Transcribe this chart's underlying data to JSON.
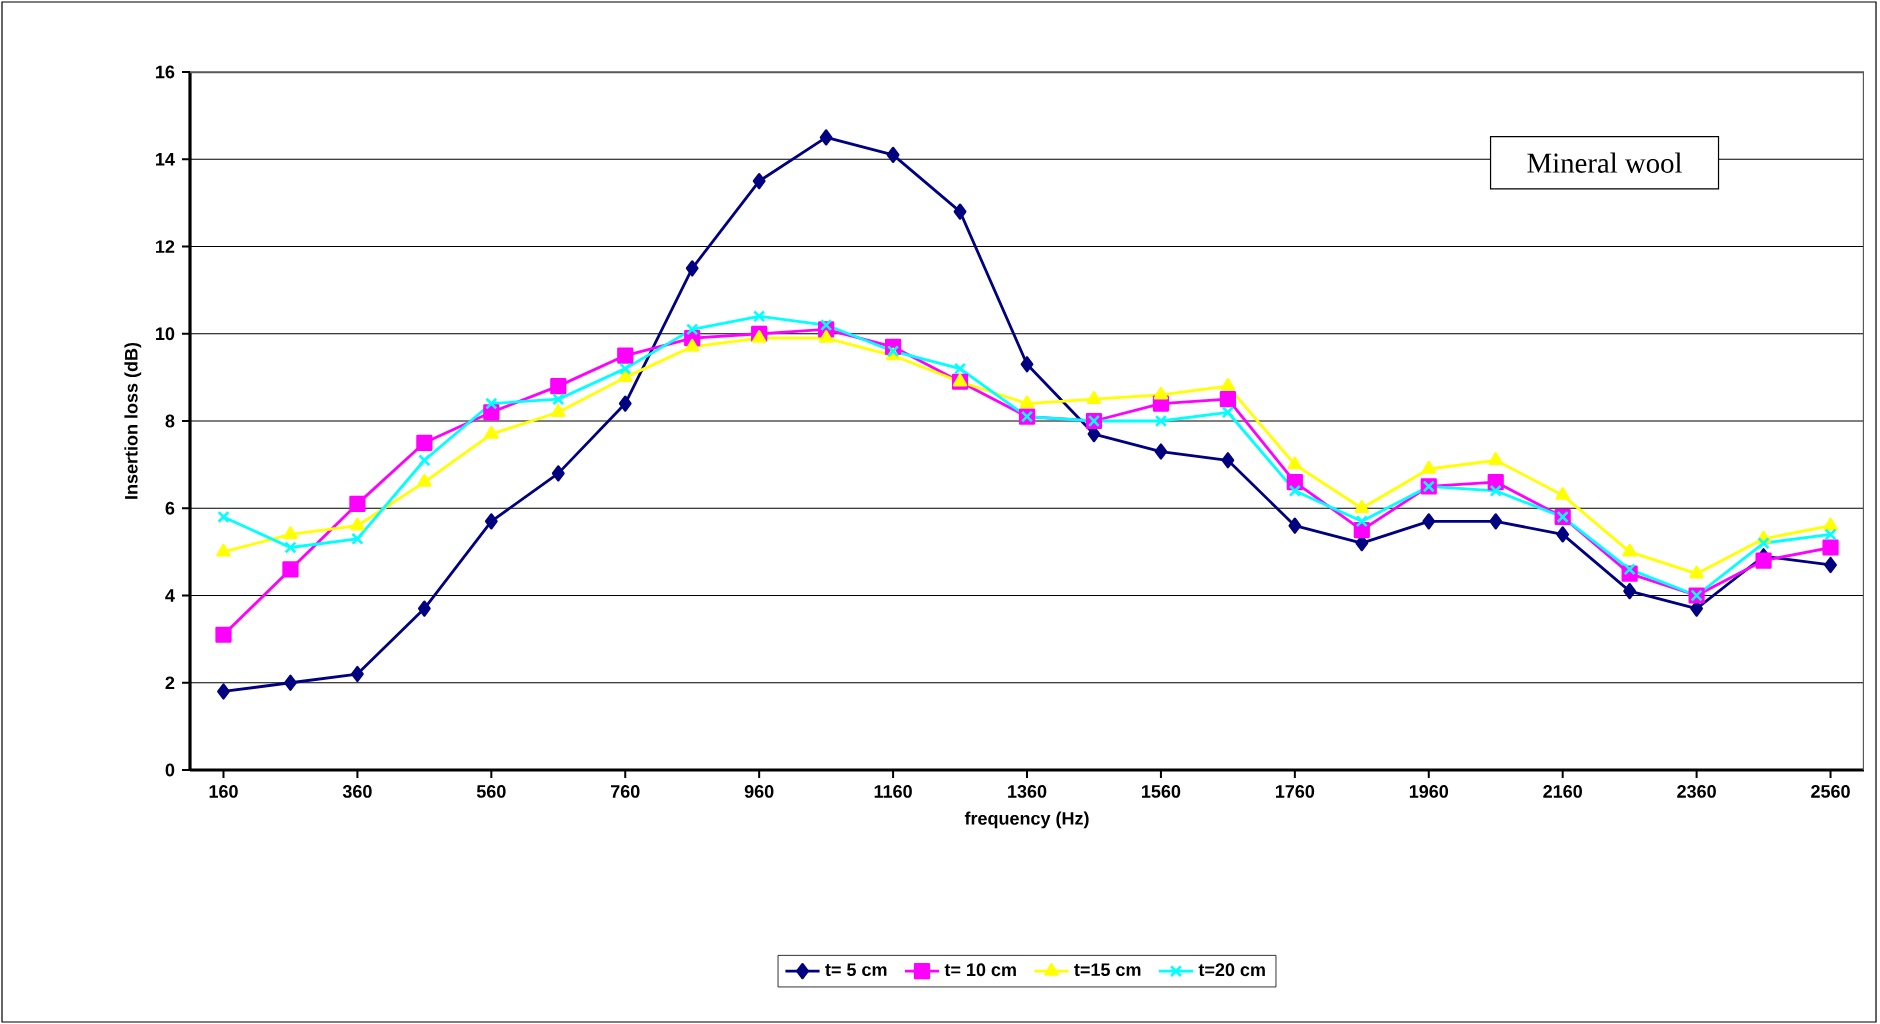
{
  "chart_data": {
    "type": "line",
    "xlabel": "frequency (Hz)",
    "ylabel": "Insertion loss (dB)",
    "annotations": [
      "Mineral wool"
    ],
    "x": [
      160,
      260,
      360,
      460,
      560,
      660,
      760,
      860,
      960,
      1060,
      1160,
      1260,
      1360,
      1460,
      1560,
      1660,
      1760,
      1860,
      1960,
      2060,
      2160,
      2260,
      2360,
      2460,
      2560
    ],
    "xlim": [
      110,
      2610
    ],
    "xticks": [
      160,
      360,
      560,
      760,
      960,
      1160,
      1360,
      1560,
      1760,
      1960,
      2160,
      2360,
      2560
    ],
    "ylim": [
      0,
      16
    ],
    "yticks": [
      0,
      2,
      4,
      6,
      8,
      10,
      12,
      14,
      16
    ],
    "grid": "y",
    "legend": "bottom",
    "series": [
      {
        "name": "t= 5 cm",
        "color": "#000080",
        "marker": "diamond",
        "values": [
          1.8,
          2.0,
          2.2,
          3.7,
          5.7,
          6.8,
          8.4,
          11.5,
          13.5,
          14.5,
          14.1,
          12.8,
          9.3,
          7.7,
          7.3,
          7.1,
          5.6,
          5.2,
          5.7,
          5.7,
          5.4,
          4.1,
          3.7,
          4.9,
          4.7
        ]
      },
      {
        "name": "t= 10 cm",
        "color": "#ff00ff",
        "marker": "square",
        "values": [
          3.1,
          4.6,
          6.1,
          7.5,
          8.2,
          8.8,
          9.5,
          9.9,
          10.0,
          10.1,
          9.7,
          8.9,
          8.1,
          8.0,
          8.4,
          8.5,
          6.6,
          5.5,
          6.5,
          6.6,
          5.8,
          4.5,
          4.0,
          4.8,
          5.1
        ]
      },
      {
        "name": "t=15 cm",
        "color": "#ffff00",
        "marker": "triangle",
        "values": [
          5.0,
          5.4,
          5.6,
          6.6,
          7.7,
          8.2,
          9.0,
          9.7,
          9.9,
          9.9,
          9.5,
          8.9,
          8.4,
          8.5,
          8.6,
          8.8,
          7.0,
          6.0,
          6.9,
          7.1,
          6.3,
          5.0,
          4.5,
          5.3,
          5.6
        ]
      },
      {
        "name": "t=20 cm",
        "color": "#00ffff",
        "marker": "cross",
        "values": [
          5.8,
          5.1,
          5.3,
          7.1,
          8.4,
          8.5,
          9.2,
          10.1,
          10.4,
          10.2,
          9.6,
          9.2,
          8.1,
          8.0,
          8.0,
          8.2,
          6.4,
          5.7,
          6.5,
          6.4,
          5.8,
          4.6,
          4.0,
          5.2,
          5.4
        ]
      }
    ]
  }
}
